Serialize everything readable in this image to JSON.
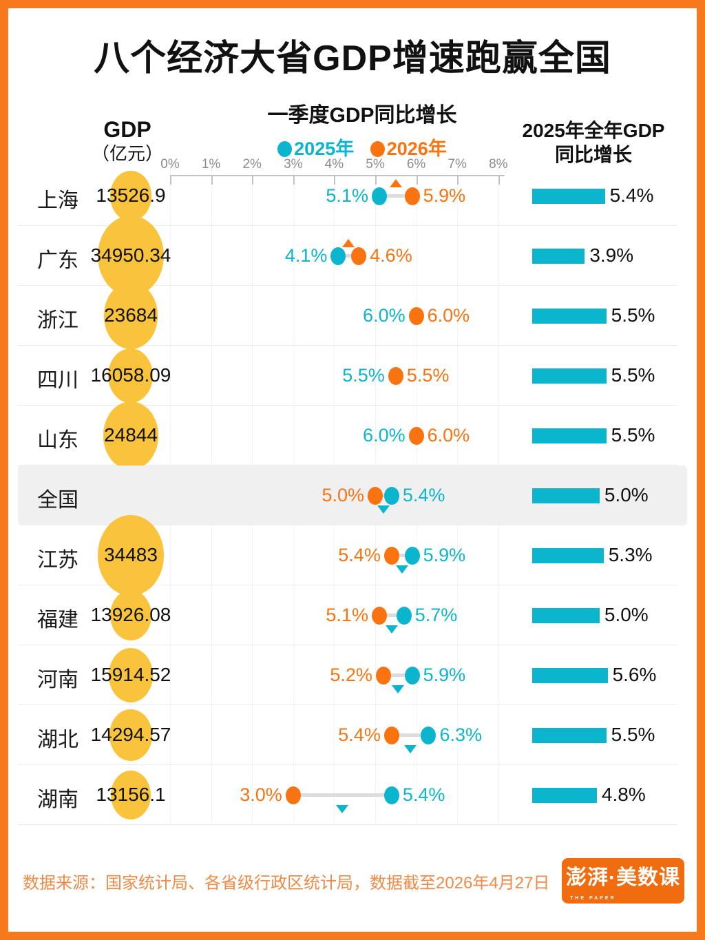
{
  "title": "八个经济大省GDP增速跑赢全国",
  "page": {
    "border_color": "#F8791C",
    "background": "#FFFFFF",
    "highlight_band": "#F0F0F0",
    "bubble_color": "#F9C33C"
  },
  "columns": {
    "gdp": {
      "label": "GDP",
      "unit": "（亿元）"
    },
    "q1": {
      "title": "一季度GDP同比增长",
      "legend": [
        {
          "label": "2025年",
          "color": "#0CB5CE"
        },
        {
          "label": "2026年",
          "color": "#F97410"
        }
      ]
    },
    "annual": {
      "title_line1": "2025年全年GDP",
      "title_line2": "同比增长"
    }
  },
  "chart_data": {
    "type": "dumbbell+bar",
    "unit": "%",
    "axis": {
      "tick_labels": [
        "0%",
        "1%",
        "2%",
        "3%",
        "4%",
        "5%",
        "6%",
        "7%",
        "8%"
      ],
      "min": 0,
      "max": 8
    },
    "series": [
      {
        "name": "2025年一季度GDP同比增长",
        "color": "#0CB5CE"
      },
      {
        "name": "2026年一季度GDP同比增长",
        "color": "#F97410"
      },
      {
        "name": "2025年全年GDP同比增长",
        "color": "#0CB5CE"
      }
    ],
    "rows": [
      {
        "name": "上海",
        "gdp": "13526.9",
        "q1_2025": 5.1,
        "q1_2026": 5.9,
        "q1_2025_label": "5.1%",
        "q1_2026_label": "5.9%",
        "annual_2025": 5.4,
        "annual_label": "5.4%",
        "trend": "up",
        "highlight": false
      },
      {
        "name": "广东",
        "gdp": "34950.34",
        "q1_2025": 4.1,
        "q1_2026": 4.6,
        "q1_2025_label": "4.1%",
        "q1_2026_label": "4.6%",
        "annual_2025": 3.9,
        "annual_label": "3.9%",
        "trend": "up",
        "highlight": false
      },
      {
        "name": "浙江",
        "gdp": "23684",
        "q1_2025": 6.0,
        "q1_2026": 6.0,
        "q1_2025_label": "6.0%",
        "q1_2026_label": "6.0%",
        "annual_2025": 5.5,
        "annual_label": "5.5%",
        "trend": "flat",
        "highlight": false
      },
      {
        "name": "四川",
        "gdp": "16058.09",
        "q1_2025": 5.5,
        "q1_2026": 5.5,
        "q1_2025_label": "5.5%",
        "q1_2026_label": "5.5%",
        "annual_2025": 5.5,
        "annual_label": "5.5%",
        "trend": "flat",
        "highlight": false
      },
      {
        "name": "山东",
        "gdp": "24844",
        "q1_2025": 6.0,
        "q1_2026": 6.0,
        "q1_2025_label": "6.0%",
        "q1_2026_label": "6.0%",
        "annual_2025": 5.5,
        "annual_label": "5.5%",
        "trend": "flat",
        "highlight": false
      },
      {
        "name": "全国",
        "gdp": null,
        "q1_2025": 5.4,
        "q1_2026": 5.0,
        "q1_2025_label": "5.4%",
        "q1_2026_label": "5.0%",
        "annual_2025": 5.0,
        "annual_label": "5.0%",
        "trend": "down",
        "highlight": true
      },
      {
        "name": "江苏",
        "gdp": "34483",
        "q1_2025": 5.9,
        "q1_2026": 5.4,
        "q1_2025_label": "5.9%",
        "q1_2026_label": "5.4%",
        "annual_2025": 5.3,
        "annual_label": "5.3%",
        "trend": "down",
        "highlight": false
      },
      {
        "name": "福建",
        "gdp": "13926.08",
        "q1_2025": 5.7,
        "q1_2026": 5.1,
        "q1_2025_label": "5.7%",
        "q1_2026_label": "5.1%",
        "annual_2025": 5.0,
        "annual_label": "5.0%",
        "trend": "down",
        "highlight": false
      },
      {
        "name": "河南",
        "gdp": "15914.52",
        "q1_2025": 5.9,
        "q1_2026": 5.2,
        "q1_2025_label": "5.9%",
        "q1_2026_label": "5.2%",
        "annual_2025": 5.6,
        "annual_label": "5.6%",
        "trend": "down",
        "highlight": false
      },
      {
        "name": "湖北",
        "gdp": "14294.57",
        "q1_2025": 6.3,
        "q1_2026": 5.4,
        "q1_2025_label": "6.3%",
        "q1_2026_label": "5.4%",
        "annual_2025": 5.5,
        "annual_label": "5.5%",
        "trend": "down",
        "highlight": false
      },
      {
        "name": "湖南",
        "gdp": "13156.1",
        "q1_2025": 5.4,
        "q1_2026": 3.0,
        "q1_2025_label": "5.4%",
        "q1_2026_label": "3.0%",
        "annual_2025": 4.8,
        "annual_label": "4.8%",
        "trend": "down",
        "highlight": false
      }
    ]
  },
  "footer": {
    "source": "数据来源：国家统计局、各省级行政区统计局，数据截至2026年4月27日",
    "logo_text": "澎湃·美数课",
    "logo_subtext": "THE PAPER",
    "logo_color": "#F16C0E"
  }
}
